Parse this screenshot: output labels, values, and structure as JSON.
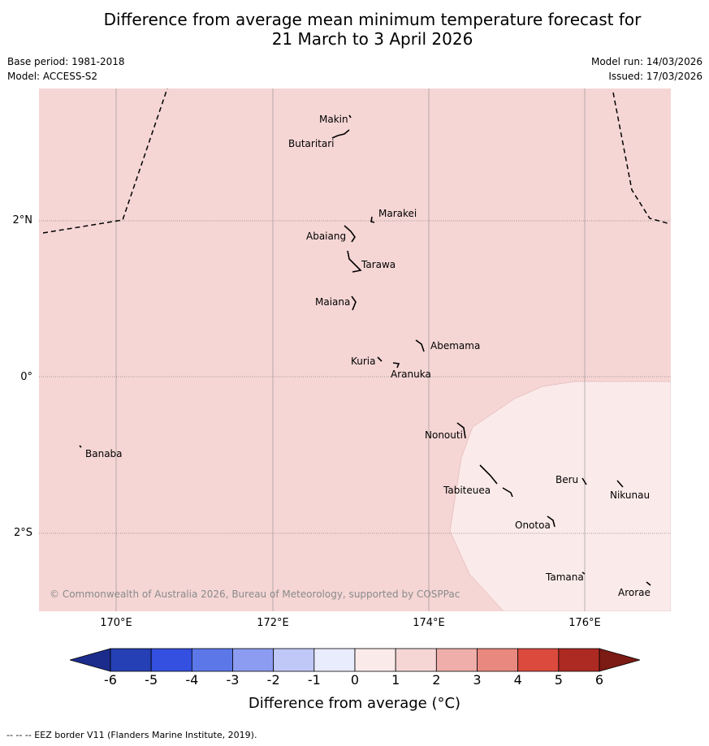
{
  "title": {
    "line1": "Difference from average mean minimum temperature forecast for",
    "line2": "21 March to 3 April 2026"
  },
  "meta": {
    "base_period": "Base period: 1981-2018",
    "model": "Model: ACCESS-S2",
    "model_run": "Model run: 14/03/2026",
    "issued": "Issued: 17/03/2026"
  },
  "map": {
    "colors": {
      "background_0_1": "#f5d6d5",
      "region_1_0": "#fbeaea",
      "eez_border": "#000000",
      "gridline": "#8c8c8c",
      "land": "#000000"
    },
    "lat_labels": [
      "2°N",
      "0°",
      "2°S"
    ],
    "lon_labels": [
      "170°E",
      "172°E",
      "174°E",
      "176°E"
    ],
    "islands": [
      {
        "name": "Makin"
      },
      {
        "name": "Butaritari"
      },
      {
        "name": "Marakei"
      },
      {
        "name": "Abaiang"
      },
      {
        "name": "Tarawa"
      },
      {
        "name": "Maiana"
      },
      {
        "name": "Abemama"
      },
      {
        "name": "Kuria"
      },
      {
        "name": "Aranuka"
      },
      {
        "name": "Nonouti"
      },
      {
        "name": "Banaba"
      },
      {
        "name": "Beru"
      },
      {
        "name": "Tabiteuea"
      },
      {
        "name": "Nikunau"
      },
      {
        "name": "Onotoa"
      },
      {
        "name": "Tamana"
      },
      {
        "name": "Arorae"
      }
    ],
    "copyright": "© Commonwealth of Australia 2026, Bureau of Meteorology, supported by COSPPac"
  },
  "colorbar": {
    "ticks": [
      "-6",
      "-5",
      "-4",
      "-3",
      "-2",
      "-1",
      "0",
      "1",
      "2",
      "3",
      "4",
      "5",
      "6"
    ],
    "colors": [
      "#1c2c8c",
      "#2440b4",
      "#3450e0",
      "#5c78e8",
      "#8c9cf0",
      "#c0c8f8",
      "#e8ecfc",
      "#fbeaea",
      "#f5d6d5",
      "#efaeaa",
      "#e8887e",
      "#dc4a3e",
      "#ac2a22",
      "#7c1a14"
    ],
    "label": "Difference from average (°C)"
  },
  "footer": "--  --  -- EEZ border V11 (Flanders Marine Institute, 2019)."
}
